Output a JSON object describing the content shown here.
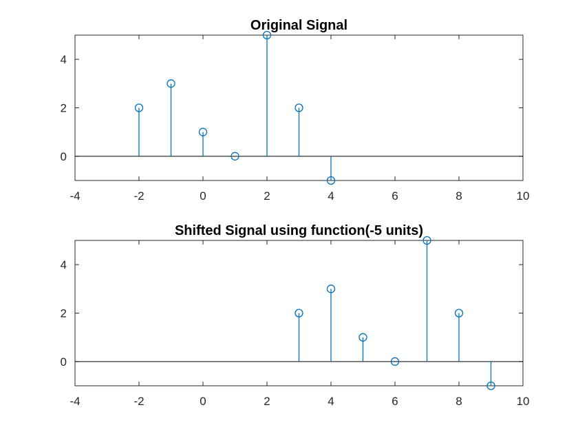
{
  "chart_data": [
    {
      "type": "stem",
      "title": "Original Signal",
      "xlim": [
        -4,
        10
      ],
      "ylim": [
        -1,
        5
      ],
      "xticks": [
        -4,
        -2,
        0,
        2,
        4,
        6,
        8,
        10
      ],
      "yticks": [
        0,
        2,
        4
      ],
      "color": "#0072BD",
      "x": [
        -2,
        -1,
        0,
        1,
        2,
        3,
        4
      ],
      "y": [
        2,
        3,
        1,
        0,
        5,
        2,
        -1
      ]
    },
    {
      "type": "stem",
      "title": "Shifted Signal using function(-5 units)",
      "xlim": [
        -4,
        10
      ],
      "ylim": [
        -1,
        5
      ],
      "xticks": [
        -4,
        -2,
        0,
        2,
        4,
        6,
        8,
        10
      ],
      "yticks": [
        0,
        2,
        4
      ],
      "color": "#0072BD",
      "x": [
        3,
        4,
        5,
        6,
        7,
        8,
        9
      ],
      "y": [
        2,
        3,
        1,
        0,
        5,
        2,
        -1
      ]
    }
  ]
}
